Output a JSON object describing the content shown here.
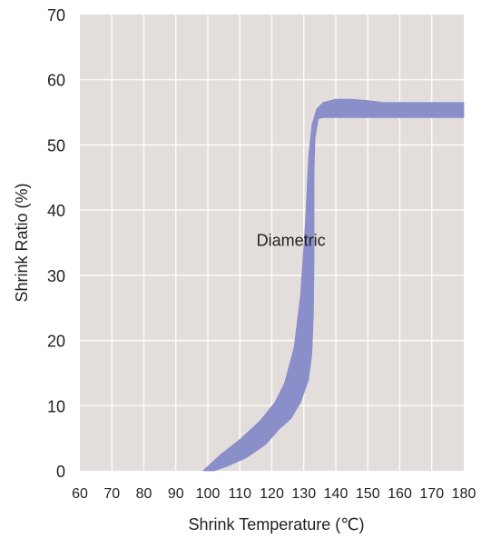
{
  "chart_data": {
    "type": "area",
    "title": "",
    "xlabel": "Shrink Temperature (℃)",
    "ylabel": "Shrink Ratio (%)",
    "xlim": [
      60,
      180
    ],
    "ylim": [
      0,
      70
    ],
    "x_ticks": [
      "60",
      "70",
      "80",
      "90",
      "100",
      "110",
      "120",
      "130",
      "140",
      "150",
      "160",
      "170",
      "180"
    ],
    "y_ticks": [
      "0",
      "10",
      "20",
      "30",
      "40",
      "50",
      "60",
      "70"
    ],
    "grid": true,
    "colors": {
      "background": "#e3dedc",
      "grid": "#ffffff",
      "band": "#8a8ec9",
      "text": "#231f20"
    },
    "annotations": [
      {
        "text": "Diametric",
        "x": 126,
        "y": 34.5
      }
    ],
    "series": [
      {
        "name": "Diametric",
        "upper": [
          [
            98.5,
            0
          ],
          [
            104,
            2.5
          ],
          [
            110,
            4.8
          ],
          [
            116,
            7.5
          ],
          [
            121,
            10.5
          ],
          [
            124,
            13.5
          ],
          [
            127,
            19
          ],
          [
            129,
            27
          ],
          [
            130.5,
            38
          ],
          [
            131.5,
            48
          ],
          [
            132.5,
            53
          ],
          [
            134,
            55.5
          ],
          [
            136,
            56.5
          ],
          [
            140,
            57
          ],
          [
            145,
            57
          ],
          [
            150,
            56.8
          ],
          [
            155,
            56.5
          ],
          [
            160,
            56.5
          ],
          [
            170,
            56.5
          ],
          [
            180,
            56.5
          ]
        ],
        "lower": [
          [
            180,
            54.2
          ],
          [
            170,
            54.2
          ],
          [
            160,
            54.2
          ],
          [
            150,
            54.2
          ],
          [
            140,
            54.2
          ],
          [
            136,
            54.2
          ],
          [
            134.5,
            54
          ],
          [
            133.5,
            51
          ],
          [
            133.2,
            46
          ],
          [
            133.2,
            40
          ],
          [
            133.2,
            32
          ],
          [
            133,
            24
          ],
          [
            132.5,
            18
          ],
          [
            131.5,
            14
          ],
          [
            129,
            10.5
          ],
          [
            126,
            8
          ],
          [
            122.5,
            6.5
          ],
          [
            118,
            4
          ],
          [
            112,
            2
          ],
          [
            106,
            0.7
          ],
          [
            102,
            0
          ],
          [
            98.5,
            0
          ]
        ]
      }
    ]
  }
}
